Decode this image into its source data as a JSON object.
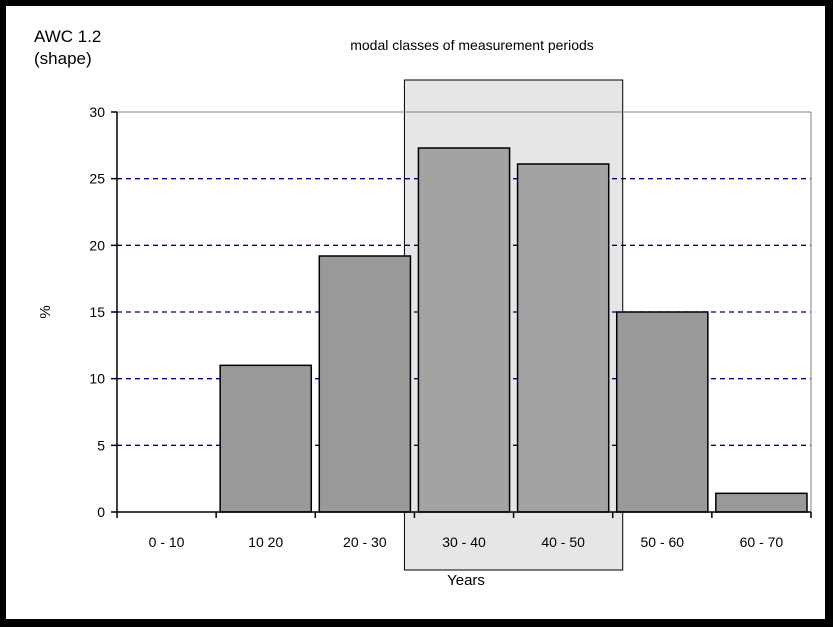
{
  "chart_data": {
    "type": "bar",
    "title": "modal classes of measurement periods",
    "corner_label_line1": "AWC 1.2",
    "corner_label_line2": "(shape)",
    "xlabel": "Years",
    "ylabel": "%",
    "ylim": [
      0,
      30
    ],
    "yticks": [
      0,
      5,
      10,
      15,
      20,
      25,
      30
    ],
    "grid": true,
    "categories": [
      "0 - 10",
      "10  20",
      "20 - 30",
      "30 - 40",
      "40 - 50",
      "50 - 60",
      "60 - 70"
    ],
    "values": [
      0,
      11,
      19.2,
      27.3,
      26.1,
      15,
      1.4
    ],
    "highlight_categories": [
      "30 - 40",
      "40 - 50"
    ],
    "colors": {
      "bar": "#999999",
      "bar_highlight": "#a3a3a3",
      "highlight_box": "#e6e6e6",
      "grid": "#000080"
    }
  }
}
